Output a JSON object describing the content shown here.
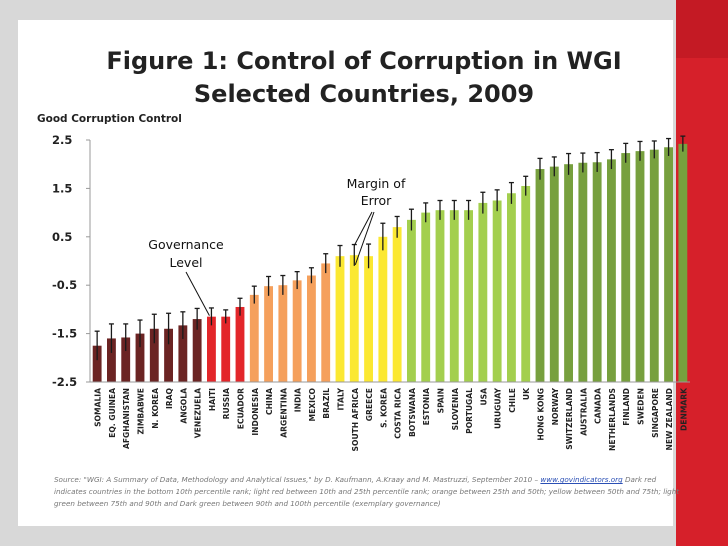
{
  "slide": {
    "title_line1": "Figure 1: Control of Corruption in WGI",
    "title_line2": "Selected Countries, 2009",
    "accent_red": "#d6202a"
  },
  "source": {
    "prefix": "Source: \"WGI: A Summary of Data, Methodology and Analytical Issues,\" by D. Kaufmann, A.Kraay and M. Mastruzzi, September 2010 – ",
    "link": "www.govindicators.org",
    "suffix": " Dark red indicates countries in the bottom 10th percentile rank; light red between 10th and 25th percentile rank; orange between 25th and 50th; yellow between 50th and 75th; light green between 75th and 90th and Dark green between 90th and 100th percentile (exemplary governance)"
  },
  "chart_data": {
    "type": "bar",
    "title": "Figure 1: Control of Corruption in WGI Selected Countries, 2009",
    "ylabel": "Good Corruption Control",
    "ylim": [
      -2.5,
      2.5
    ],
    "yticks": [
      "2.5",
      "1.5",
      "0.5",
      "-0.5",
      "-1.5",
      "-2.5"
    ],
    "ytick_values": [
      2.5,
      1.5,
      0.5,
      -0.5,
      -1.5,
      -2.5
    ],
    "annotations": {
      "governance": [
        "Governance",
        "Level"
      ],
      "margin": [
        "Margin of",
        "Error"
      ]
    },
    "colors": {
      "dark_red": "#6b2423",
      "red": "#e3262a",
      "orange": "#f5a05c",
      "yellow": "#fbe832",
      "light_green": "#a3cf4e",
      "dark_green": "#77a03e",
      "error_bar": "#1a1a1a"
    },
    "categories": [
      "SOMALIA",
      "EQ. GUINEA",
      "AFGHANISTAN",
      "ZIMBABWE",
      "N. KOREA",
      "IRAQ",
      "ANGOLA",
      "VENEZUELA",
      "HAITI",
      "RUSSIA",
      "ECUADOR",
      "INDONESIA",
      "CHINA",
      "ARGENTINA",
      "INDIA",
      "MEXICO",
      "BRAZIL",
      "ITALY",
      "SOUTH AFRICA",
      "GREECE",
      "S. KOREA",
      "COSTA RICA",
      "BOTSWANA",
      "ESTONIA",
      "SPAIN",
      "SLOVENIA",
      "PORTUGAL",
      "USA",
      "URUGUAY",
      "CHILE",
      "UK",
      "HONG KONG",
      "NORWAY",
      "SWITZERLAND",
      "AUSTRALIA",
      "CANADA",
      "NETHERLANDS",
      "FINLAND",
      "SWEDEN",
      "SINGAPORE",
      "NEW ZEALAND",
      "DENMARK"
    ],
    "values": [
      -1.75,
      -1.6,
      -1.58,
      -1.5,
      -1.4,
      -1.4,
      -1.33,
      -1.2,
      -1.15,
      -1.15,
      -0.95,
      -0.7,
      -0.52,
      -0.5,
      -0.4,
      -0.3,
      -0.05,
      0.1,
      0.12,
      0.1,
      0.5,
      0.7,
      0.85,
      1.0,
      1.05,
      1.05,
      1.05,
      1.2,
      1.25,
      1.4,
      1.55,
      1.9,
      1.95,
      2.0,
      2.03,
      2.04,
      2.1,
      2.23,
      2.27,
      2.3,
      2.35,
      2.42
    ],
    "errors": [
      0.3,
      0.3,
      0.28,
      0.28,
      0.3,
      0.32,
      0.28,
      0.22,
      0.18,
      0.14,
      0.18,
      0.18,
      0.2,
      0.2,
      0.18,
      0.16,
      0.2,
      0.22,
      0.22,
      0.25,
      0.28,
      0.22,
      0.22,
      0.2,
      0.2,
      0.2,
      0.2,
      0.22,
      0.22,
      0.22,
      0.2,
      0.22,
      0.2,
      0.22,
      0.2,
      0.2,
      0.2,
      0.2,
      0.2,
      0.18,
      0.18,
      0.16
    ],
    "color_groups": [
      "dark_red",
      "dark_red",
      "dark_red",
      "dark_red",
      "dark_red",
      "dark_red",
      "dark_red",
      "dark_red",
      "red",
      "red",
      "red",
      "orange",
      "orange",
      "orange",
      "orange",
      "orange",
      "orange",
      "yellow",
      "yellow",
      "yellow",
      "yellow",
      "yellow",
      "light_green",
      "light_green",
      "light_green",
      "light_green",
      "light_green",
      "light_green",
      "light_green",
      "light_green",
      "light_green",
      "dark_green",
      "dark_green",
      "dark_green",
      "dark_green",
      "dark_green",
      "dark_green",
      "dark_green",
      "dark_green",
      "dark_green",
      "dark_green",
      "dark_green"
    ]
  }
}
